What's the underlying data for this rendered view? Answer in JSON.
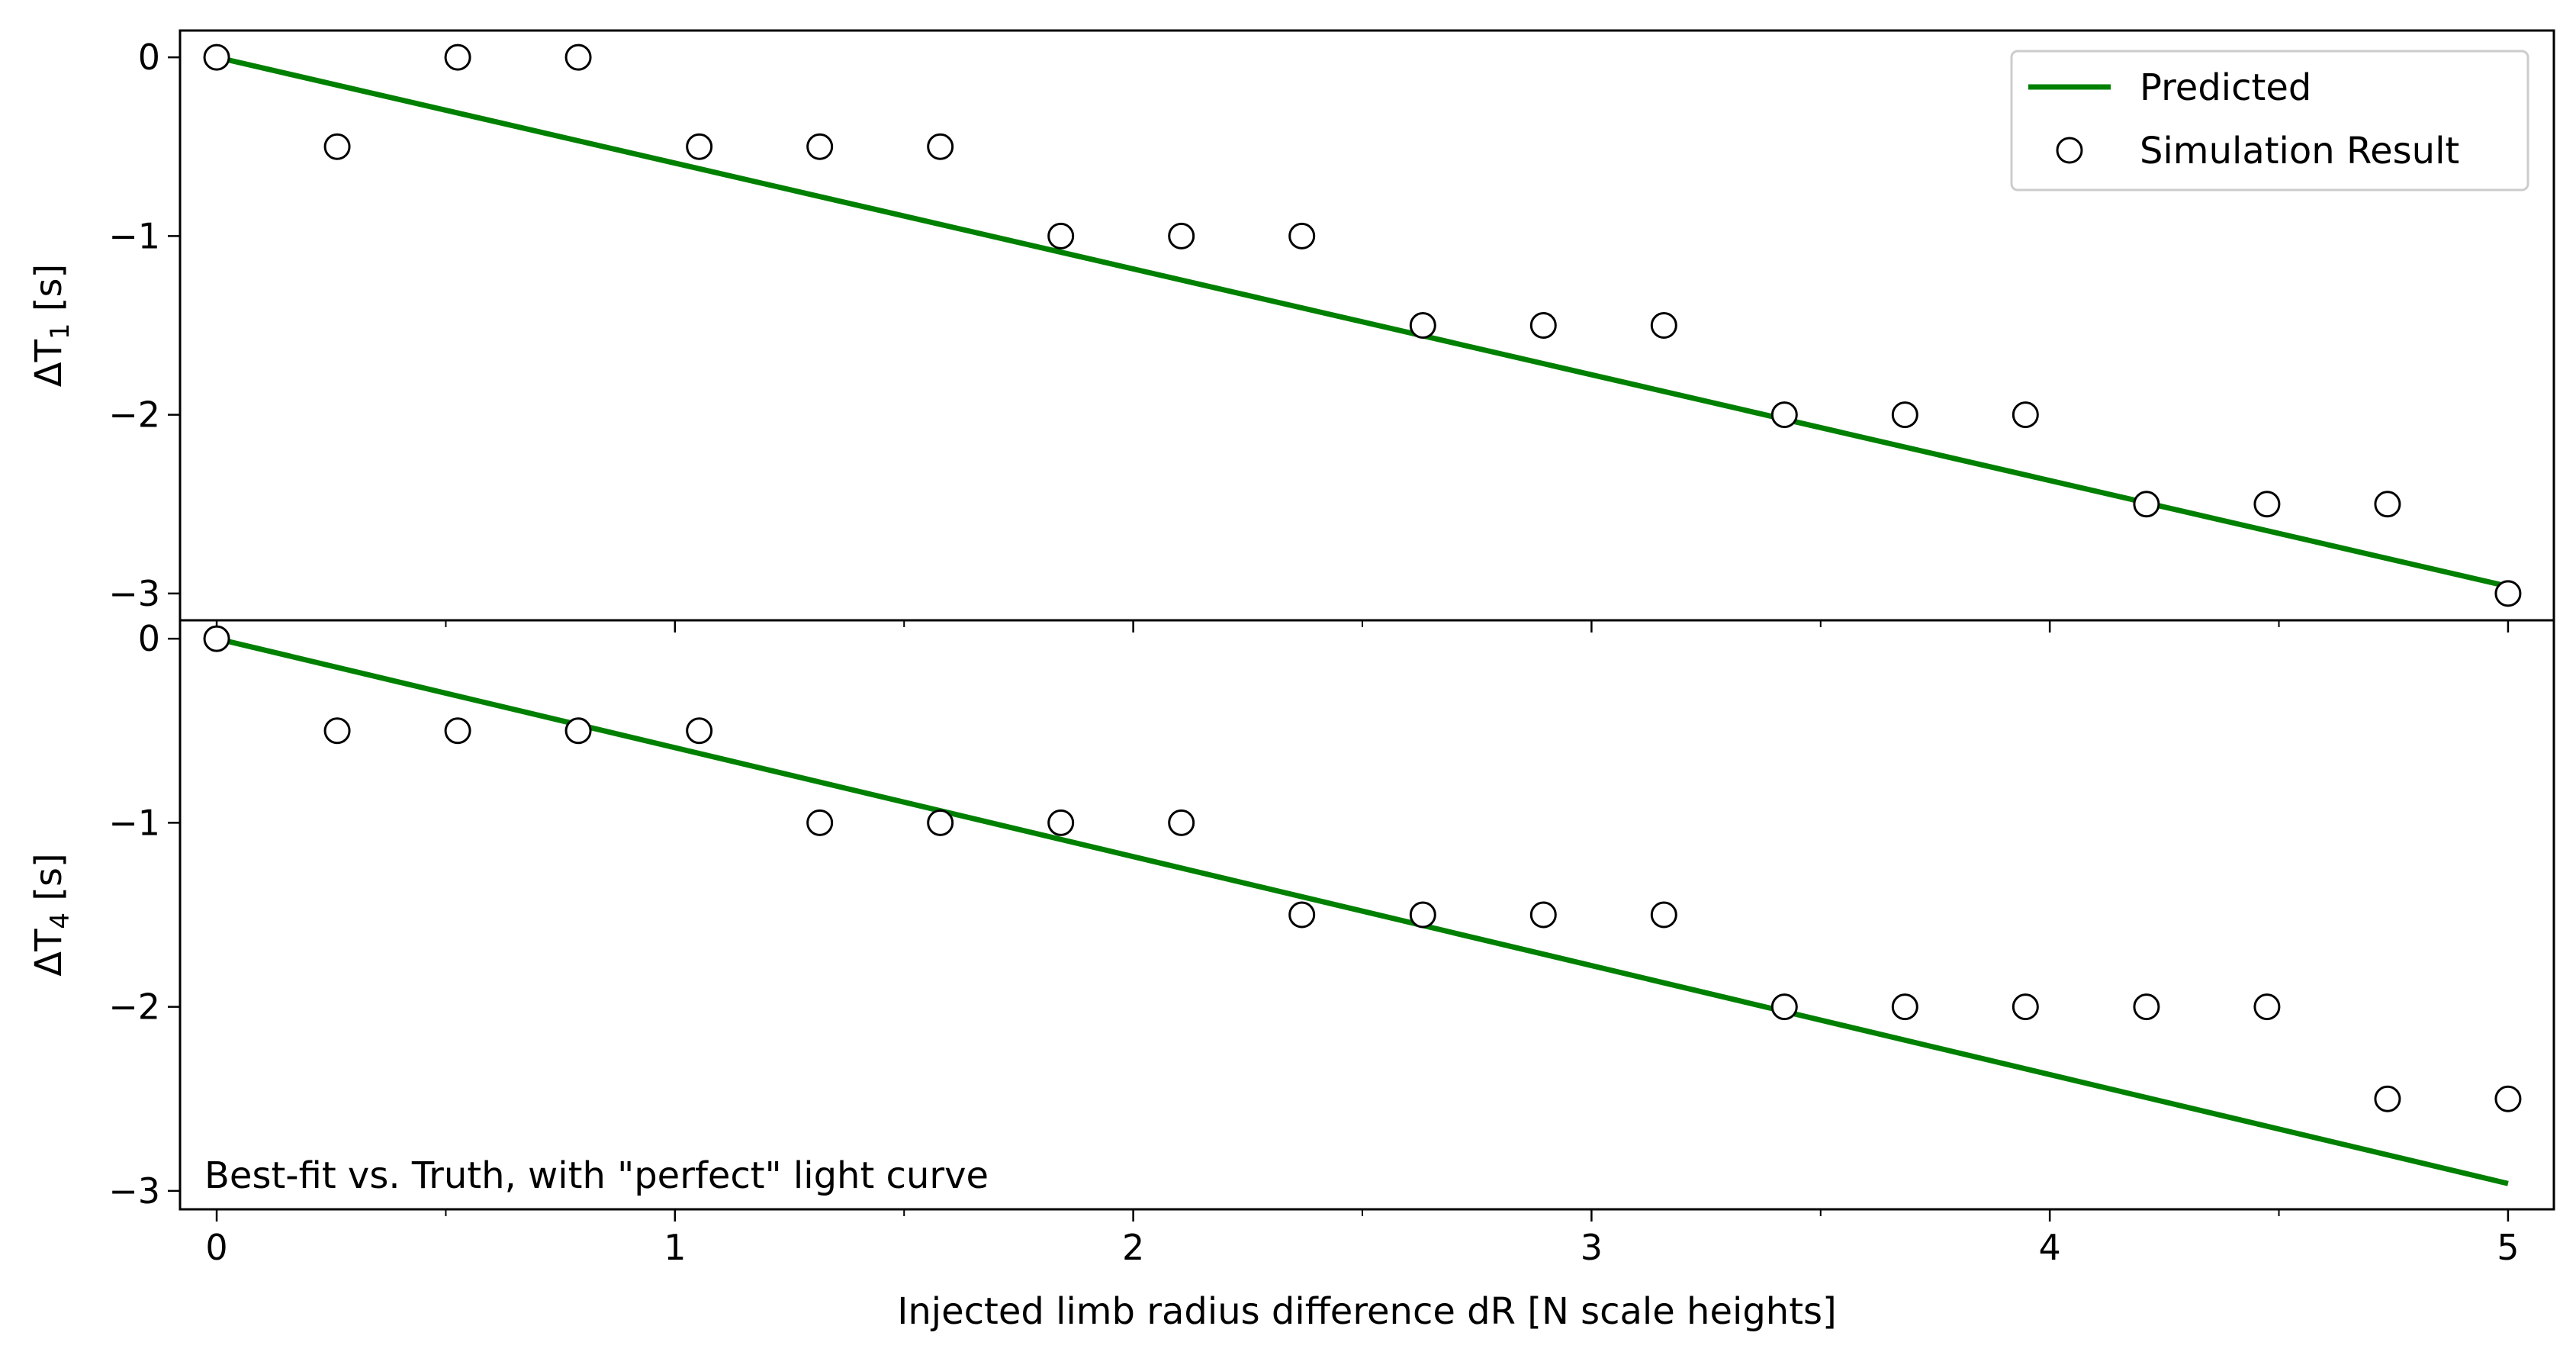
{
  "chart_data": {
    "type": "scatter",
    "xlabel": "Injected limb radius difference dR [N scale heights]",
    "xlim": [
      -0.08,
      5.1
    ],
    "xticks": [
      0,
      1,
      2,
      3,
      4,
      5
    ],
    "xtick_labels": [
      "0",
      "1",
      "2",
      "3",
      "4",
      "5"
    ],
    "grid": false,
    "legend": {
      "position": "top-right",
      "entries": [
        "Predicted",
        "Simulation Result"
      ]
    },
    "colors": {
      "predicted": "#008000",
      "marker_edge": "#000000",
      "marker_face": "#ffffff",
      "frame": "#000000"
    },
    "panels": [
      {
        "ylabel_base": "ΔT",
        "ylabel_sub": "1",
        "ylabel_unit": " [s]",
        "ylim": [
          -3.15,
          0.15
        ],
        "yticks": [
          0,
          -1,
          -2,
          -3
        ],
        "ytick_labels": [
          "0",
          "−1",
          "−2",
          "−3"
        ],
        "annotation": "",
        "series": [
          {
            "name": "Predicted",
            "type": "line",
            "x": [
              0,
              5
            ],
            "y": [
              0,
              -2.96
            ]
          },
          {
            "name": "Simulation Result",
            "type": "scatter",
            "x": [
              0,
              0.263,
              0.526,
              0.789,
              1.053,
              1.316,
              1.579,
              1.842,
              2.105,
              2.368,
              2.632,
              2.895,
              3.158,
              3.421,
              3.684,
              3.947,
              4.211,
              4.474,
              4.737,
              5.0
            ],
            "y": [
              0,
              -0.5,
              0,
              0,
              -0.5,
              -0.5,
              -0.5,
              -1,
              -1,
              -1,
              -1.5,
              -1.5,
              -1.5,
              -2,
              -2,
              -2,
              -2.5,
              -2.5,
              -2.5,
              -3
            ]
          }
        ]
      },
      {
        "ylabel_base": "ΔT",
        "ylabel_sub": "4",
        "ylabel_unit": " [s]",
        "ylim": [
          -3.1,
          0.1
        ],
        "yticks": [
          0,
          -1,
          -2,
          -3
        ],
        "ytick_labels": [
          "0",
          "−1",
          "−2",
          "−3"
        ],
        "annotation": "Best-fit vs. Truth, with \"perfect\" light curve",
        "series": [
          {
            "name": "Predicted",
            "type": "line",
            "x": [
              0,
              5
            ],
            "y": [
              0,
              -2.96
            ]
          },
          {
            "name": "Simulation Result",
            "type": "scatter",
            "x": [
              0,
              0.263,
              0.526,
              0.789,
              1.053,
              1.316,
              1.579,
              1.842,
              2.105,
              2.368,
              2.632,
              2.895,
              3.158,
              3.421,
              3.684,
              3.947,
              4.211,
              4.474,
              4.737,
              5.0
            ],
            "y": [
              0,
              -0.5,
              -0.5,
              -0.5,
              -0.5,
              -1,
              -1,
              -1,
              -1,
              -1.5,
              -1.5,
              -1.5,
              -1.5,
              -2,
              -2,
              -2,
              -2,
              -2,
              -2.5,
              -2.5
            ]
          }
        ]
      }
    ]
  }
}
